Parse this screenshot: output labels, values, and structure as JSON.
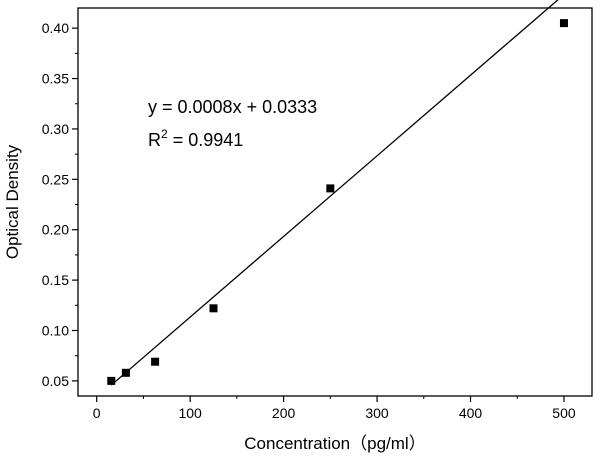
{
  "chart_data": {
    "type": "scatter",
    "title": "",
    "xlabel": "Concentration（pg/ml）",
    "ylabel": "Optical Density",
    "xlim": [
      -20,
      530
    ],
    "ylim": [
      0.035,
      0.42
    ],
    "x_ticks": [
      0,
      100,
      200,
      300,
      400,
      500
    ],
    "y_ticks": [
      0.05,
      0.1,
      0.15,
      0.2,
      0.25,
      0.3,
      0.35,
      0.4
    ],
    "x_tick_labels": [
      "0",
      "100",
      "200",
      "300",
      "400",
      "500"
    ],
    "y_tick_labels": [
      "0.05",
      "0.10",
      "0.15",
      "0.20",
      "0.25",
      "0.30",
      "0.35",
      "0.40"
    ],
    "grid": false,
    "series": [
      {
        "marker": "square",
        "color": "#000000",
        "points": [
          {
            "x": 15.6,
            "y": 0.05
          },
          {
            "x": 31.25,
            "y": 0.058
          },
          {
            "x": 62.5,
            "y": 0.069
          },
          {
            "x": 125,
            "y": 0.122
          },
          {
            "x": 250,
            "y": 0.241
          },
          {
            "x": 500,
            "y": 0.405
          }
        ]
      }
    ],
    "fit_line": {
      "x_range": [
        15.6,
        500
      ],
      "slope": 0.0008,
      "intercept": 0.0333,
      "color": "#000000"
    },
    "annotations": {
      "equation": "y = 0.0008x + 0.0333",
      "r2_prefix": "R",
      "r2_sup": "2",
      "r2_suffix": " = 0.9941"
    }
  }
}
